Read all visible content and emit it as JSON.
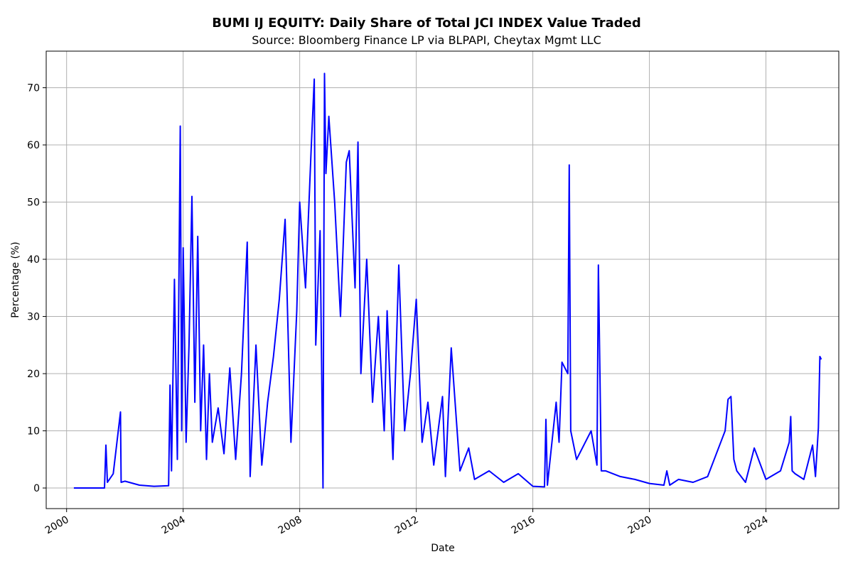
{
  "chart_data": {
    "type": "line",
    "title": "BUMI IJ EQUITY: Daily Share of Total JCI INDEX Value Traded",
    "subtitle": "Source: Bloomberg Finance LP via BLPAPI, Cheytax Mgmt LLC",
    "xlabel": "Date",
    "ylabel": "Percentage (%)",
    "xlim": [
      1999.3,
      2026.5
    ],
    "ylim": [
      -3.6,
      76.4
    ],
    "x_ticks": [
      "2000",
      "2004",
      "2008",
      "2012",
      "2016",
      "2020",
      "2024"
    ],
    "y_ticks": [
      "0",
      "10",
      "20",
      "30",
      "40",
      "50",
      "60",
      "70"
    ],
    "grid": true,
    "line_color": "#0000ff",
    "series": [
      {
        "x": [
          2000.25,
          2001.3,
          2001.35,
          2001.4,
          2001.6,
          2001.85,
          2001.87,
          2002.0,
          2002.5,
          2003.0,
          2003.5,
          2003.55,
          2003.6,
          2003.7,
          2003.8,
          2003.9,
          2003.95,
          2004.0,
          2004.1,
          2004.2,
          2004.3,
          2004.4,
          2004.5,
          2004.6,
          2004.7,
          2004.8,
          2004.9,
          2005.0,
          2005.2,
          2005.4,
          2005.6,
          2005.8,
          2006.0,
          2006.2,
          2006.3,
          2006.5,
          2006.7,
          2006.9,
          2007.1,
          2007.3,
          2007.5,
          2007.7,
          2007.9,
          2008.0,
          2008.2,
          2008.4,
          2008.5,
          2008.55,
          2008.7,
          2008.8,
          2008.85,
          2008.9,
          2009.0,
          2009.2,
          2009.4,
          2009.6,
          2009.7,
          2009.9,
          2010.0,
          2010.1,
          2010.3,
          2010.5,
          2010.7,
          2010.9,
          2011.0,
          2011.2,
          2011.4,
          2011.6,
          2011.8,
          2012.0,
          2012.2,
          2012.4,
          2012.6,
          2012.9,
          2013.0,
          2013.2,
          2013.5,
          2013.8,
          2014.0,
          2014.5,
          2015.0,
          2015.5,
          2016.0,
          2016.4,
          2016.45,
          2016.5,
          2016.8,
          2016.9,
          2017.0,
          2017.2,
          2017.25,
          2017.3,
          2017.5,
          2017.8,
          2018.0,
          2018.2,
          2018.25,
          2018.35,
          2018.5,
          2019.0,
          2019.5,
          2020.0,
          2020.5,
          2020.6,
          2020.7,
          2021.0,
          2021.5,
          2022.0,
          2022.3,
          2022.6,
          2022.7,
          2022.8,
          2022.9,
          2023.0,
          2023.3,
          2023.6,
          2024.0,
          2024.5,
          2024.8,
          2024.85,
          2024.9,
          2025.0,
          2025.3,
          2025.6,
          2025.7,
          2025.8,
          2025.85,
          2025.9
        ],
        "y": [
          0.0,
          0.0,
          7.5,
          1.0,
          2.5,
          13.3,
          1.0,
          1.2,
          0.5,
          0.3,
          0.4,
          18.0,
          3.0,
          36.5,
          5.0,
          63.3,
          10.0,
          42.0,
          8.0,
          25.0,
          51.0,
          15.0,
          44.0,
          10.0,
          25.0,
          5.0,
          20.0,
          8.0,
          14.0,
          6.0,
          21.0,
          5.0,
          20.0,
          43.0,
          2.0,
          25.0,
          4.0,
          15.0,
          23.0,
          33.0,
          47.0,
          8.0,
          31.0,
          50.0,
          35.0,
          60.0,
          71.5,
          25.0,
          45.0,
          0.0,
          72.5,
          55.0,
          65.0,
          50.0,
          30.0,
          57.0,
          59.0,
          35.0,
          60.5,
          20.0,
          40.0,
          15.0,
          30.0,
          10.0,
          31.0,
          5.0,
          39.0,
          10.0,
          20.0,
          33.0,
          8.0,
          15.0,
          4.0,
          16.0,
          2.0,
          24.5,
          3.0,
          7.0,
          1.5,
          3.0,
          1.0,
          2.5,
          0.3,
          0.2,
          12.0,
          0.5,
          15.0,
          8.0,
          22.0,
          20.0,
          56.5,
          10.0,
          5.0,
          8.0,
          10.0,
          4.0,
          39.0,
          3.0,
          3.0,
          2.0,
          1.5,
          0.8,
          0.5,
          3.0,
          0.5,
          1.5,
          1.0,
          2.0,
          6.0,
          10.0,
          15.5,
          16.0,
          5.0,
          3.0,
          1.0,
          7.0,
          1.5,
          3.0,
          8.0,
          12.5,
          3.0,
          2.5,
          1.5,
          7.5,
          2.0,
          10.5,
          23.0,
          22.5
        ]
      }
    ]
  }
}
